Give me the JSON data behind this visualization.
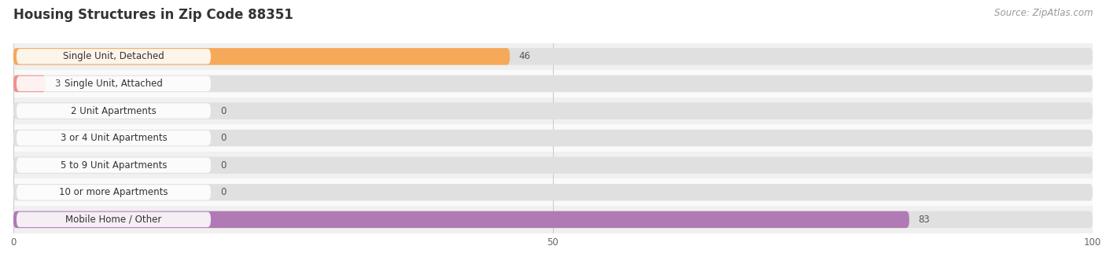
{
  "title": "Housing Structures in Zip Code 88351",
  "source": "Source: ZipAtlas.com",
  "categories": [
    "Single Unit, Detached",
    "Single Unit, Attached",
    "2 Unit Apartments",
    "3 or 4 Unit Apartments",
    "5 to 9 Unit Apartments",
    "10 or more Apartments",
    "Mobile Home / Other"
  ],
  "values": [
    46,
    3,
    0,
    0,
    0,
    0,
    83
  ],
  "bar_colors": [
    "#f5a959",
    "#f09090",
    "#a8c4e0",
    "#a8c4e0",
    "#a8c4e0",
    "#a8c4e0",
    "#b07ab5"
  ],
  "bar_bg_color": "#e0e0e0",
  "row_bg_colors": [
    "#f0f0f0",
    "#fafafa"
  ],
  "xlim": [
    0,
    100
  ],
  "xticks": [
    0,
    50,
    100
  ],
  "title_fontsize": 12,
  "label_fontsize": 8.5,
  "value_fontsize": 8.5,
  "source_fontsize": 8.5,
  "bar_height": 0.62,
  "background_color": "#ffffff"
}
